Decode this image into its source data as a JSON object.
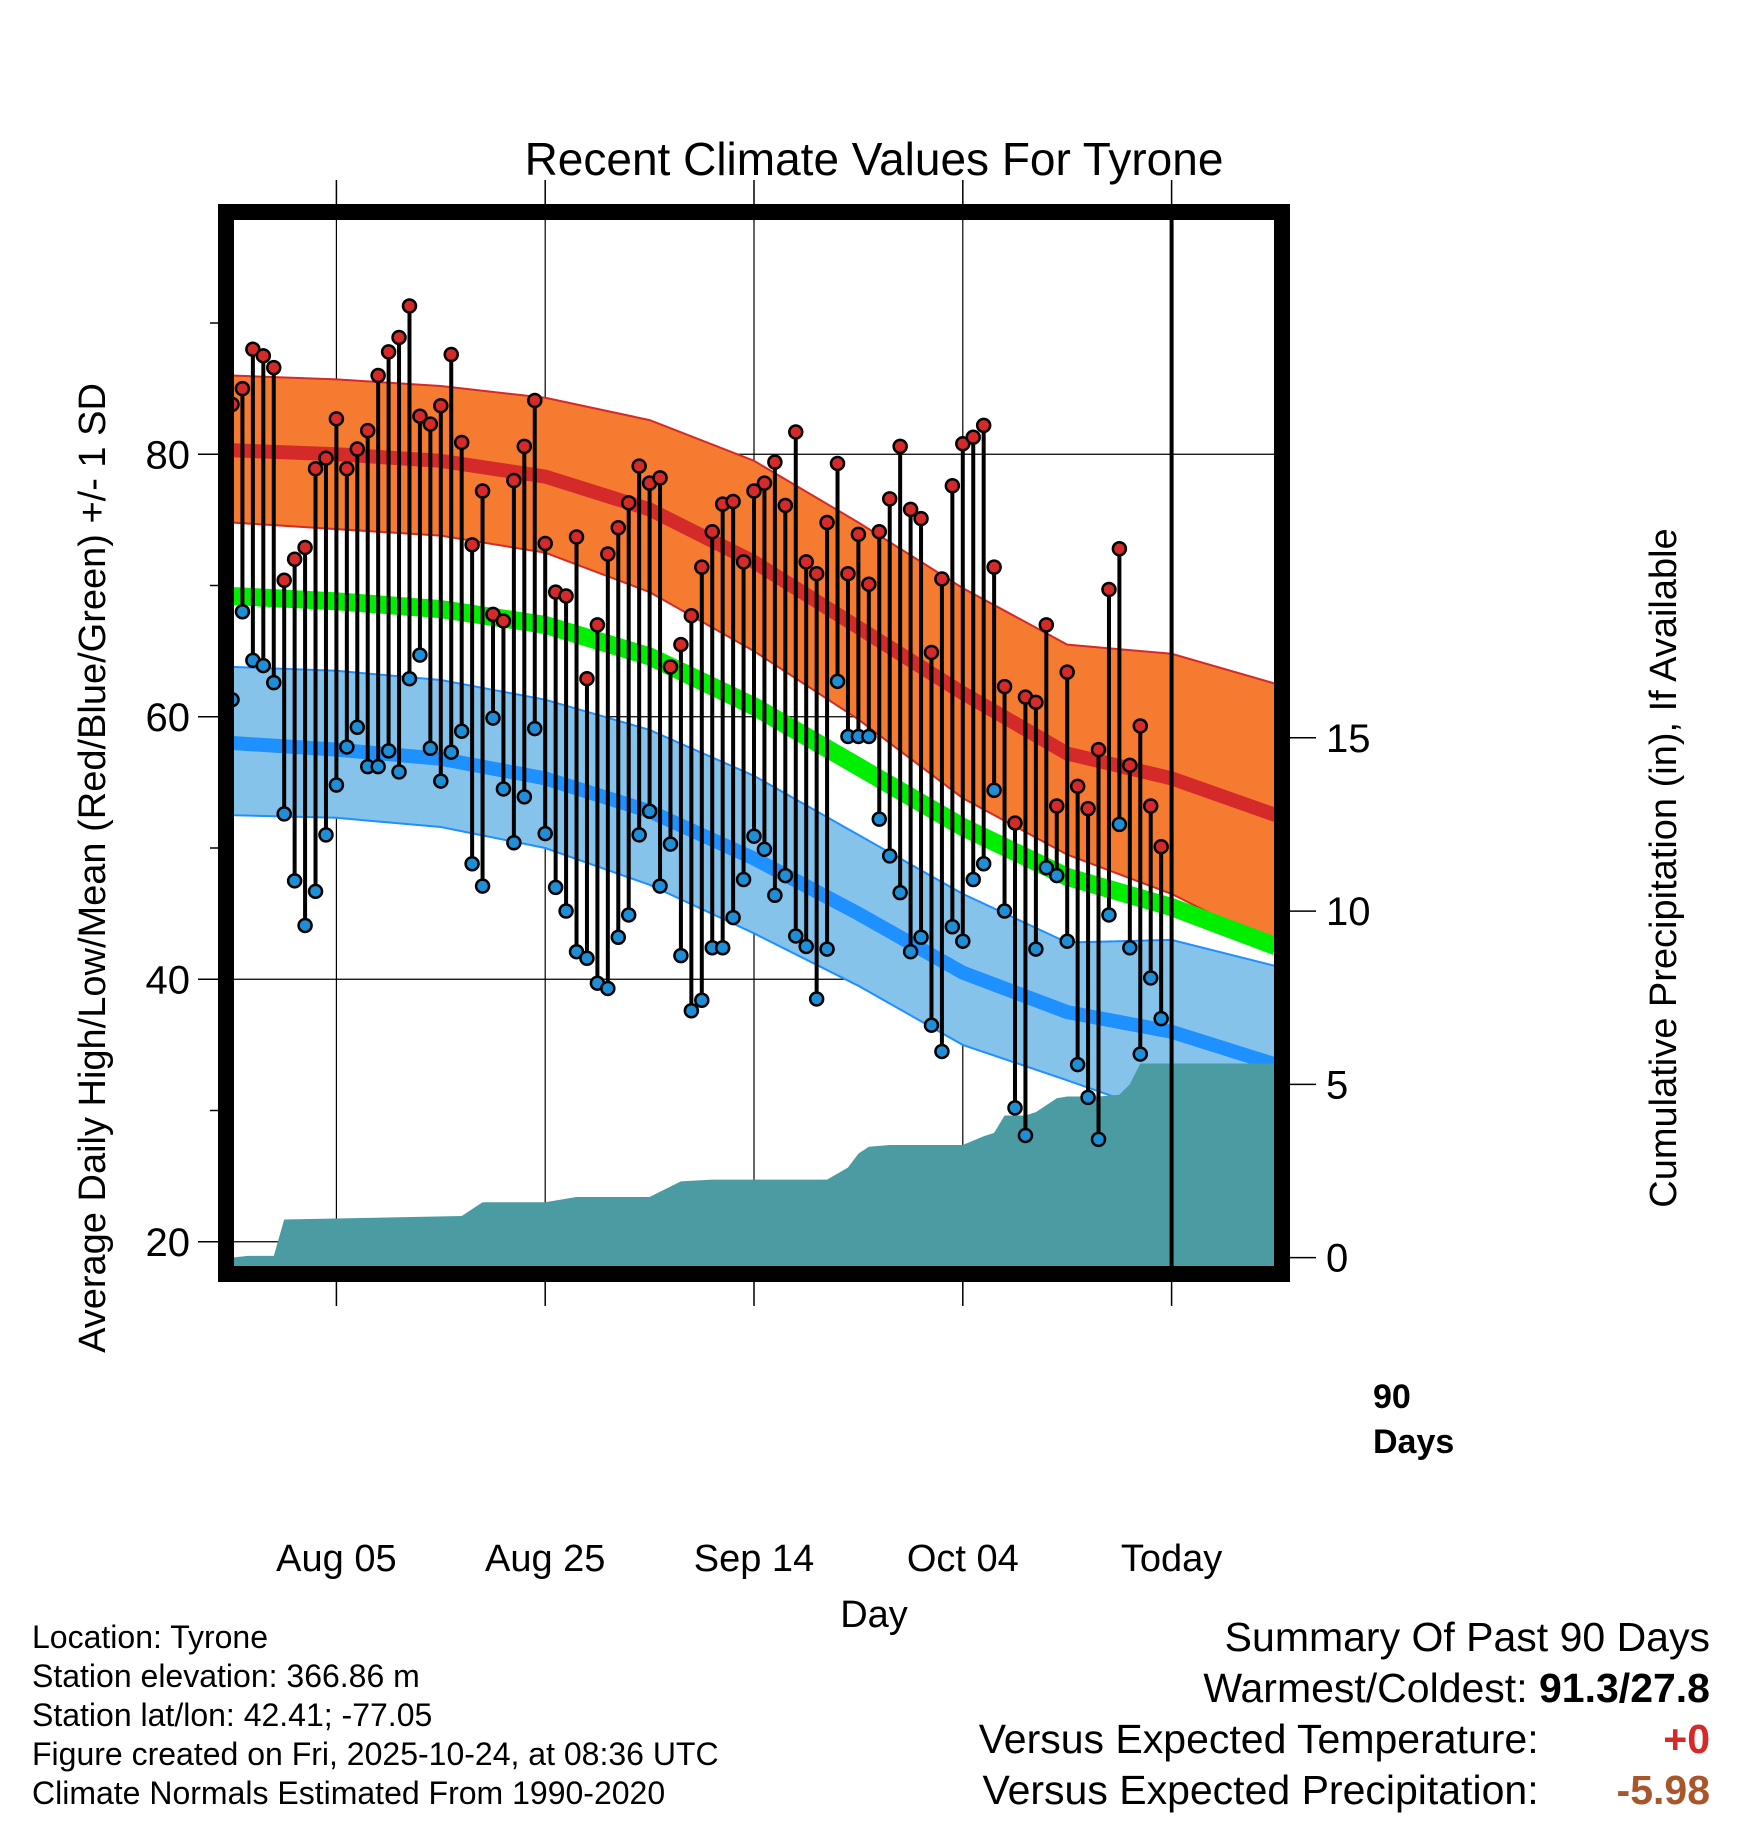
{
  "chart_data": {
    "type": "line",
    "title": "Recent Climate Values For Tyrone",
    "xlabel": "Day",
    "ylabel": "Average Daily High/Low/Mean (Red/Blue/Green) +/- 1 SD",
    "y2label": "Cumulative Precipitation (in), If Available",
    "ylim": [
      18,
      98
    ],
    "y2lim": [
      -0.3,
      30
    ],
    "x_range_days": [
      0,
      100
    ],
    "x_tick_positions": [
      10,
      30,
      50,
      70,
      90
    ],
    "x_tick_labels": [
      "Aug 05",
      "Aug 25",
      "Sep 14",
      "Oct 04",
      "Today"
    ],
    "y_ticks": [
      20,
      40,
      60,
      80
    ],
    "y_tick_labels": [
      "20",
      "40",
      "60",
      "80"
    ],
    "y2_ticks": [
      0,
      5,
      10,
      15
    ],
    "y2_tick_labels": [
      "0",
      "5",
      "10",
      "15"
    ],
    "today_marker_day": 90,
    "today_label_line1": "90",
    "today_label_line2": "Days",
    "colors": {
      "high_band": "#f47b30",
      "high_line": "#d42a2a",
      "high_edge": "#d42a2a",
      "low_band": "#86c3ea",
      "low_line": "#1e90ff",
      "mean_line": "#00ee00",
      "precip": "#4b9ba3",
      "high_dot": "#d42a2a",
      "low_dot": "#1e8fd6",
      "bar": "#000000"
    },
    "normals": {
      "days": [
        0,
        10,
        20,
        30,
        40,
        50,
        60,
        70,
        80,
        90,
        100
      ],
      "high_mean": [
        80.3,
        80.0,
        79.5,
        78.3,
        75.8,
        71.8,
        66.8,
        61.8,
        57.2,
        55.3,
        52.5
      ],
      "high_upper": [
        86.0,
        85.7,
        85.2,
        84.3,
        82.6,
        79.5,
        74.8,
        69.8,
        65.5,
        64.8,
        62.5
      ],
      "high_lower": [
        74.8,
        74.3,
        73.8,
        72.5,
        69.5,
        65.0,
        59.8,
        53.8,
        49.5,
        46.5,
        42.5
      ],
      "mean": [
        69.2,
        68.8,
        68.2,
        67.0,
        64.6,
        60.8,
        56.2,
        51.6,
        47.8,
        45.5,
        42.5
      ],
      "low_mean": [
        58.0,
        57.5,
        56.8,
        55.3,
        52.8,
        49.2,
        45.0,
        40.5,
        37.5,
        36.0,
        33.5
      ],
      "low_upper": [
        63.8,
        63.5,
        62.8,
        61.3,
        59.0,
        55.5,
        51.0,
        46.5,
        42.8,
        43.0,
        41.0
      ],
      "low_lower": [
        52.5,
        52.3,
        51.6,
        50.0,
        47.2,
        43.5,
        39.5,
        35.0,
        32.3,
        29.5,
        26.8
      ]
    },
    "daily_highs": [
      83.8,
      85.0,
      88.0,
      87.5,
      86.6,
      70.4,
      72.0,
      72.9,
      78.9,
      79.7,
      82.7,
      78.9,
      80.4,
      81.8,
      86.0,
      87.8,
      88.9,
      91.3,
      82.9,
      82.3,
      83.7,
      87.6,
      80.9,
      73.1,
      77.2,
      67.8,
      67.3,
      78.0,
      80.6,
      84.1,
      73.2,
      69.5,
      69.2,
      73.7,
      62.9,
      67.0,
      72.4,
      74.4,
      76.3,
      79.1,
      77.8,
      78.2,
      63.8,
      65.5,
      67.7,
      71.4,
      74.1,
      76.2,
      76.4,
      71.8,
      77.2,
      77.8,
      79.4,
      76.1,
      81.7,
      71.8,
      70.9,
      74.8,
      79.3,
      70.9,
      73.9,
      70.1,
      74.1,
      76.6,
      80.6,
      75.8,
      75.1,
      64.9,
      70.5,
      77.6,
      80.8,
      81.3,
      82.2,
      71.4,
      62.3,
      51.9,
      61.5,
      61.1,
      67.0,
      53.2,
      63.4,
      54.7,
      53.0,
      57.5,
      69.7,
      72.8,
      56.3,
      59.3,
      53.2,
      50.1
    ],
    "daily_lows": [
      61.3,
      68.0,
      64.3,
      63.9,
      62.6,
      52.6,
      47.5,
      44.1,
      46.7,
      51.0,
      54.8,
      57.7,
      59.2,
      56.2,
      56.2,
      57.4,
      55.8,
      62.9,
      64.7,
      57.6,
      55.1,
      57.3,
      58.9,
      48.8,
      47.1,
      59.9,
      54.5,
      50.4,
      53.9,
      59.1,
      51.1,
      47.0,
      45.2,
      42.1,
      41.6,
      39.7,
      39.3,
      43.2,
      44.9,
      51.0,
      52.8,
      47.1,
      50.3,
      41.8,
      37.6,
      38.4,
      42.4,
      42.4,
      44.7,
      47.6,
      50.9,
      49.9,
      46.4,
      47.9,
      43.3,
      42.5,
      38.5,
      42.3,
      62.7,
      58.5,
      58.5,
      58.5,
      52.2,
      49.4,
      46.6,
      42.1,
      43.2,
      36.5,
      34.5,
      44.0,
      42.9,
      47.6,
      48.8,
      54.4,
      45.2,
      30.2,
      28.1,
      42.3,
      48.5,
      47.9,
      42.9,
      33.5,
      31.0,
      27.8,
      44.9,
      51.8,
      42.4,
      34.3,
      40.1,
      37.0
    ],
    "precip_cumulative": {
      "days": [
        0,
        1.5,
        4,
        5,
        22,
        24,
        30,
        33,
        40,
        41,
        43,
        46,
        57,
        59,
        60,
        61,
        63,
        64,
        69,
        70,
        72,
        73,
        74,
        76,
        77,
        79,
        80,
        83,
        85,
        86,
        87,
        88,
        89,
        90,
        100
      ],
      "values": [
        0.0,
        0.05,
        0.05,
        1.1,
        1.2,
        1.6,
        1.6,
        1.75,
        1.75,
        1.9,
        2.2,
        2.25,
        2.25,
        2.6,
        3.0,
        3.2,
        3.25,
        3.25,
        3.25,
        3.25,
        3.5,
        3.6,
        4.1,
        4.1,
        4.2,
        4.6,
        4.65,
        4.65,
        4.7,
        5.0,
        5.6,
        5.6,
        5.6,
        5.6,
        5.6
      ]
    }
  },
  "info": {
    "location": "Location: Tyrone",
    "elevation": "Station elevation: 366.86 m",
    "latlon": "Station lat/lon: 42.41; -77.05",
    "created": "Figure created on Fri, 2025-10-24, at 08:36 UTC",
    "normals": "Climate Normals Estimated From 1990-2020"
  },
  "summary": {
    "heading": "Summary Of Past 90 Days",
    "warmest_label": "Warmest/Coldest:",
    "warmest_value": "91.3/27.8",
    "temp_label": "Versus Expected Temperature:",
    "temp_value": "+0",
    "temp_color": "#d42a2a",
    "precip_label": "Versus Expected Precipitation:",
    "precip_value": "-5.98",
    "precip_color": "#a8572a"
  }
}
